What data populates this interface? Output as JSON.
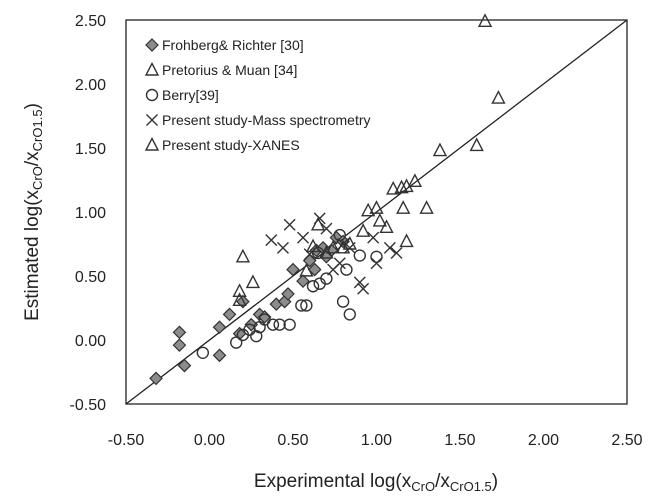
{
  "chart_data": {
    "type": "scatter",
    "xlabel": {
      "main": "Experimental  log(x",
      "sub1": "CrO",
      "mid": "/x",
      "sub2": "CrO1.5",
      "end": ")"
    },
    "ylabel": {
      "main": "Estimated log(x",
      "sub1": "CrO",
      "mid": "/x",
      "sub2": "CrO1.5",
      "end": ")"
    },
    "xlim": [
      -0.5,
      2.5
    ],
    "ylim": [
      -0.5,
      2.5
    ],
    "xticks": [
      "-0.50",
      "0.00",
      "0.50",
      "1.00",
      "1.50",
      "2.00",
      "2.50"
    ],
    "yticks": [
      "-0.50",
      "0.00",
      "0.50",
      "1.00",
      "1.50",
      "2.00",
      "2.50"
    ],
    "reference_line": {
      "from": [
        -0.5,
        -0.5
      ],
      "to": [
        2.5,
        2.5
      ]
    },
    "legend_position": "top-left",
    "series": [
      {
        "name": "Frohberg& Richter [30]",
        "marker": "diamond",
        "points": [
          [
            -0.32,
            -0.3
          ],
          [
            -0.18,
            0.06
          ],
          [
            -0.18,
            -0.04
          ],
          [
            -0.15,
            -0.2
          ],
          [
            0.06,
            0.1
          ],
          [
            0.06,
            -0.12
          ],
          [
            0.12,
            0.2
          ],
          [
            0.18,
            0.05
          ],
          [
            0.2,
            0.3
          ],
          [
            0.25,
            0.12
          ],
          [
            0.3,
            0.2
          ],
          [
            0.33,
            0.18
          ],
          [
            0.4,
            0.28
          ],
          [
            0.45,
            0.3
          ],
          [
            0.47,
            0.36
          ],
          [
            0.5,
            0.55
          ],
          [
            0.56,
            0.46
          ],
          [
            0.6,
            0.62
          ],
          [
            0.64,
            0.7
          ],
          [
            0.68,
            0.72
          ],
          [
            0.7,
            0.65
          ],
          [
            0.73,
            0.7
          ],
          [
            0.76,
            0.8
          ],
          [
            0.8,
            0.77
          ],
          [
            0.63,
            0.55
          ]
        ]
      },
      {
        "name": "Pretorius & Muan [34]",
        "marker": "triangle",
        "points": [
          [
            1.65,
            2.49
          ],
          [
            1.73,
            1.89
          ],
          [
            1.6,
            1.52
          ],
          [
            1.38,
            1.48
          ],
          [
            1.23,
            1.24
          ],
          [
            1.15,
            1.19
          ],
          [
            1.18,
            1.2
          ]
        ]
      },
      {
        "name": "Berry[39]",
        "marker": "circle",
        "points": [
          [
            -0.04,
            -0.1
          ],
          [
            0.16,
            -0.02
          ],
          [
            0.2,
            0.04
          ],
          [
            0.24,
            0.08
          ],
          [
            0.28,
            0.03
          ],
          [
            0.3,
            0.1
          ],
          [
            0.33,
            0.16
          ],
          [
            0.38,
            0.12
          ],
          [
            0.42,
            0.12
          ],
          [
            0.48,
            0.12
          ],
          [
            0.55,
            0.27
          ],
          [
            0.58,
            0.27
          ],
          [
            0.62,
            0.42
          ],
          [
            0.66,
            0.44
          ],
          [
            0.7,
            0.48
          ],
          [
            0.65,
            0.68
          ],
          [
            0.78,
            0.82
          ],
          [
            0.82,
            0.55
          ],
          [
            0.8,
            0.3
          ],
          [
            0.84,
            0.2
          ],
          [
            0.9,
            0.66
          ],
          [
            1.0,
            0.65
          ]
        ]
      },
      {
        "name": "Present study-Mass spectrometry",
        "marker": "cross",
        "points": [
          [
            0.37,
            0.78
          ],
          [
            0.44,
            0.72
          ],
          [
            0.48,
            0.9
          ],
          [
            0.56,
            0.8
          ],
          [
            0.6,
            0.67
          ],
          [
            0.66,
            0.95
          ],
          [
            0.7,
            0.87
          ],
          [
            0.74,
            0.55
          ],
          [
            0.78,
            0.6
          ],
          [
            0.8,
            0.75
          ],
          [
            0.84,
            0.72
          ],
          [
            0.9,
            0.45
          ],
          [
            0.92,
            0.4
          ],
          [
            0.98,
            0.8
          ],
          [
            1.0,
            0.6
          ],
          [
            1.08,
            0.72
          ],
          [
            1.12,
            0.68
          ]
        ]
      },
      {
        "name": "Present study-XANES",
        "marker": "triangle",
        "points": [
          [
            0.18,
            0.38
          ],
          [
            0.2,
            0.65
          ],
          [
            0.18,
            0.31
          ],
          [
            0.26,
            0.45
          ],
          [
            0.58,
            0.54
          ],
          [
            0.62,
            0.73
          ],
          [
            0.65,
            0.9
          ],
          [
            0.7,
            0.68
          ],
          [
            0.74,
            0.72
          ],
          [
            0.8,
            0.72
          ],
          [
            0.84,
            0.75
          ],
          [
            0.92,
            0.85
          ],
          [
            0.95,
            1.01
          ],
          [
            1.0,
            1.03
          ],
          [
            1.02,
            0.93
          ],
          [
            1.06,
            0.88
          ],
          [
            1.1,
            1.18
          ],
          [
            1.16,
            1.03
          ],
          [
            1.18,
            0.77
          ],
          [
            1.3,
            1.03
          ]
        ]
      }
    ]
  }
}
